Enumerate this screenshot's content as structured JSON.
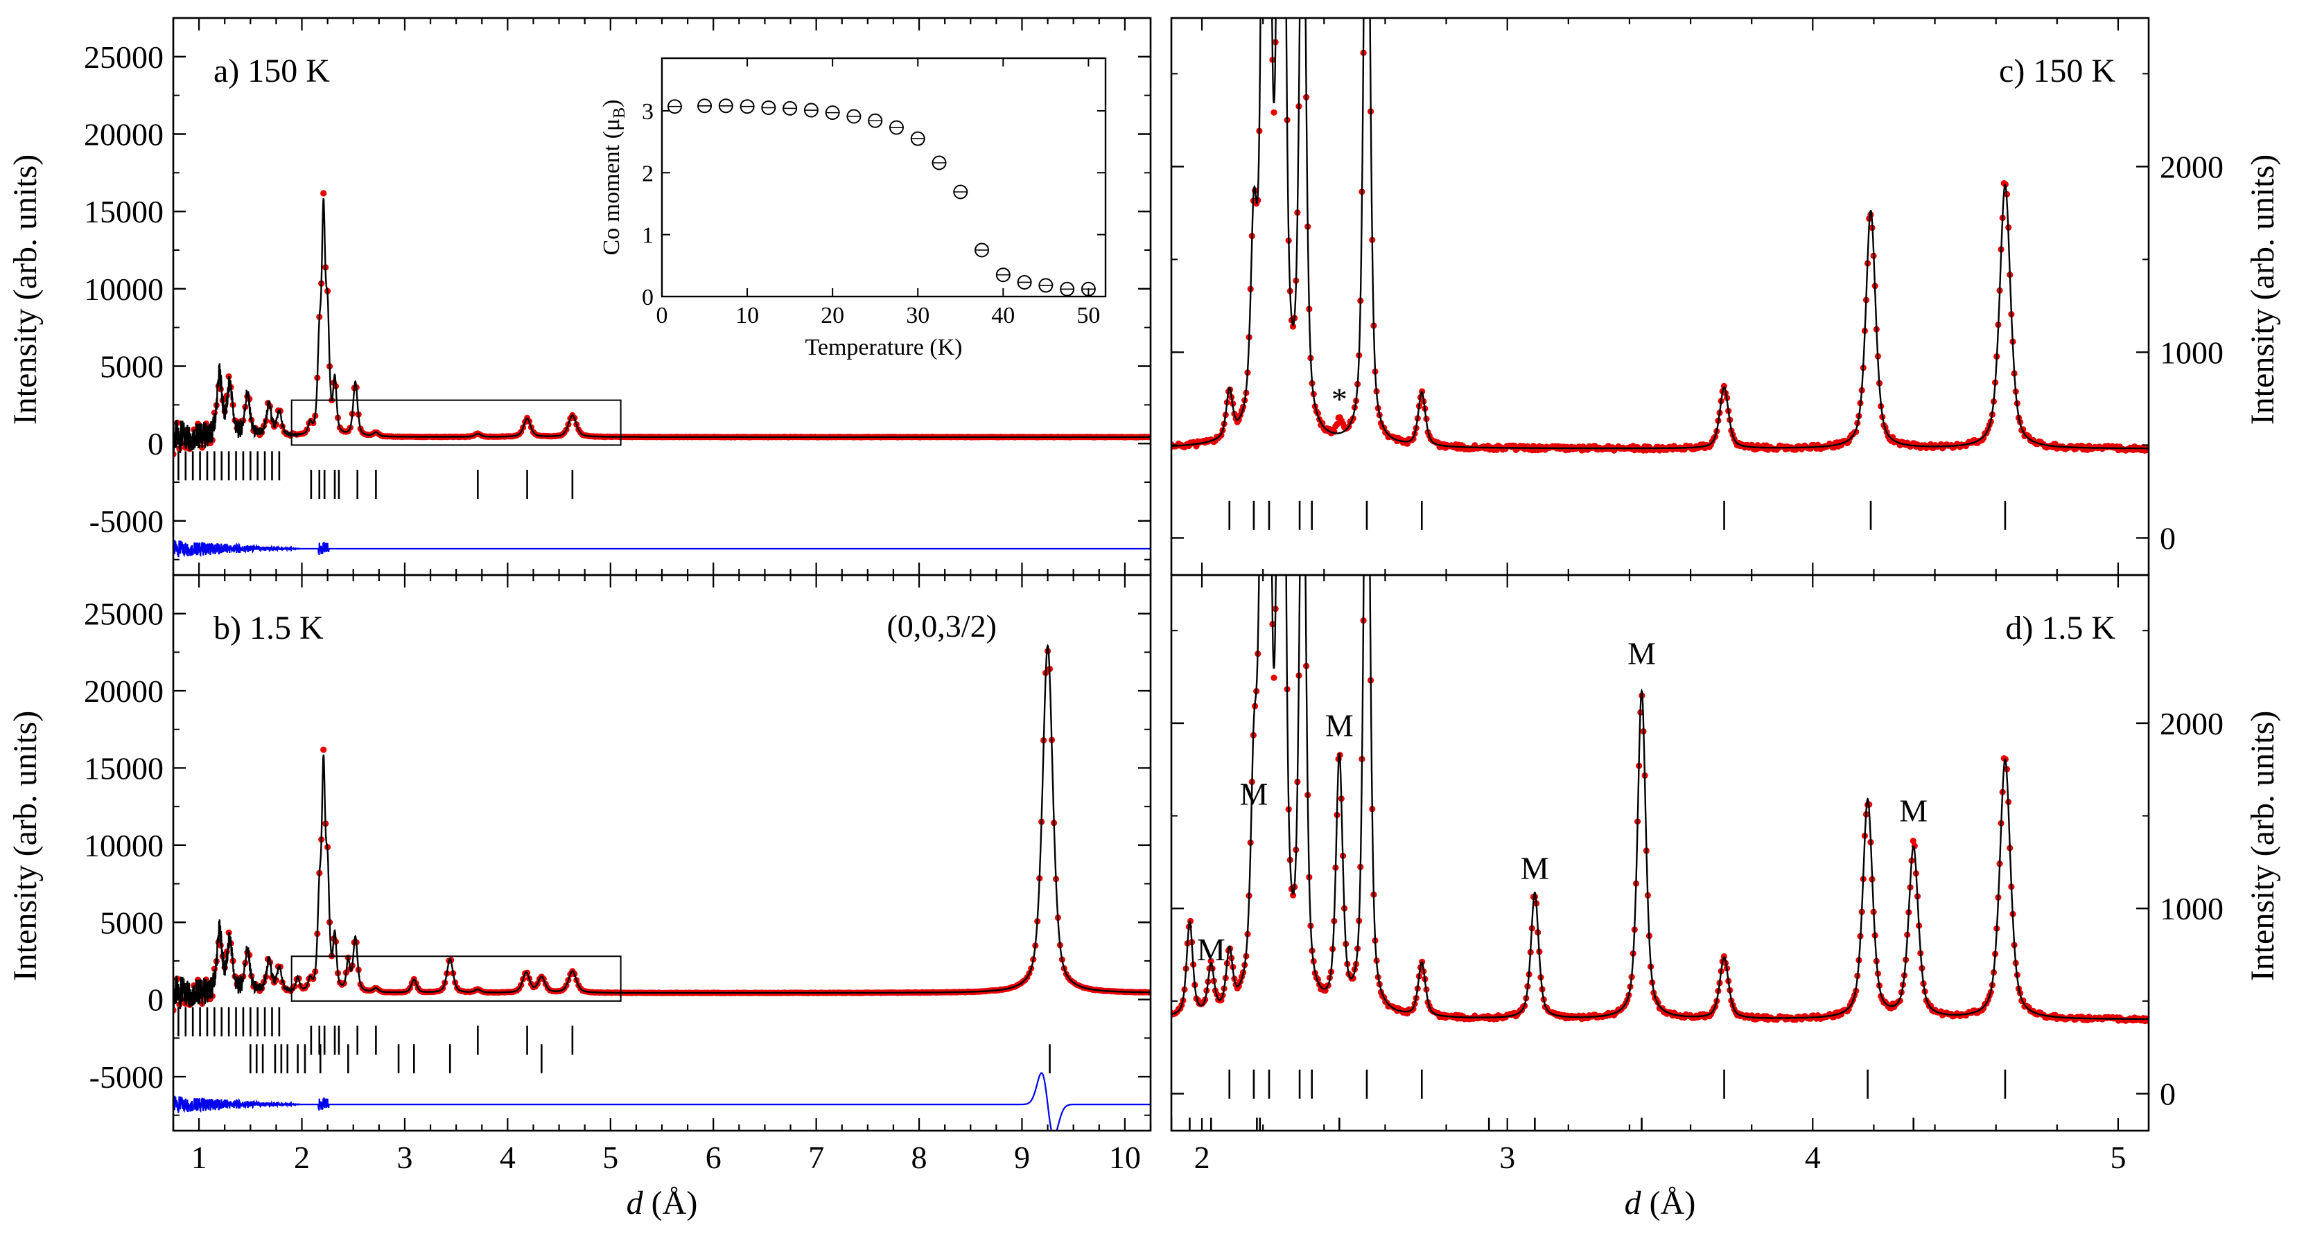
{
  "chart_data": [
    {
      "id": "a",
      "type": "scatter",
      "panel_label": "a) 150 K",
      "xlabel_italic": "d",
      "xlabel_unit": " (Å)",
      "ylabel": "Intensity (arb. units)",
      "xlim": [
        0.75,
        10.25
      ],
      "ylim": [
        -8500,
        27500
      ],
      "yticks": [
        "-5000",
        "0",
        "5000",
        "10000",
        "15000",
        "20000",
        "25000"
      ],
      "xticks": [],
      "peaks": [
        [
          1.2,
          3900,
          0.03
        ],
        [
          1.3,
          3300,
          0.03
        ],
        [
          1.47,
          2700,
          0.03
        ],
        [
          1.68,
          2000,
          0.03
        ],
        [
          1.78,
          1500,
          0.03
        ],
        [
          2.08,
          700,
          0.02
        ],
        [
          2.17,
          5500,
          0.02
        ],
        [
          2.21,
          13600,
          0.02
        ],
        [
          2.25,
          7000,
          0.02
        ],
        [
          2.32,
          3400,
          0.02
        ],
        [
          2.52,
          3500,
          0.025
        ],
        [
          2.72,
          250,
          0.03
        ],
        [
          3.71,
          200,
          0.035
        ],
        [
          4.19,
          1200,
          0.04
        ],
        [
          4.63,
          1400,
          0.045
        ]
      ],
      "background": 420,
      "bragg_ticks": [
        [
          0.8,
          1.85,
          0.07
        ],
        [
          2.09,
          2.17,
          2.22,
          2.32,
          2.36,
          2.54,
          2.72,
          3.71,
          4.19,
          4.63
        ]
      ],
      "difference_offset": -6800,
      "zoom_box": {
        "x": [
          1.9,
          5.1
        ],
        "y": [
          -100,
          2800
        ]
      },
      "series": [
        {
          "name": "observed",
          "color": "#e60000"
        },
        {
          "name": "calculated",
          "color": "#000000"
        },
        {
          "name": "difference",
          "color": "#0000ee"
        }
      ],
      "inset": {
        "xlabel": "Temperature (K)",
        "ylabel_main": "Co moment (μ",
        "ylabel_sub": "B",
        "ylabel_end": ")",
        "xlim": [
          0,
          52
        ],
        "ylim": [
          0,
          3.85
        ],
        "xticks": [
          "0",
          "10",
          "20",
          "30",
          "40",
          "50"
        ],
        "yticks": [
          "0",
          "1",
          "2",
          "3"
        ],
        "x": [
          1.5,
          5,
          7.5,
          10,
          12.5,
          15,
          17.5,
          20,
          22.5,
          25,
          27.5,
          30,
          32.5,
          35,
          37.5,
          40,
          42.5,
          45,
          47.5,
          50
        ],
        "y": [
          3.07,
          3.08,
          3.08,
          3.07,
          3.05,
          3.04,
          3.01,
          2.97,
          2.91,
          2.84,
          2.73,
          2.55,
          2.16,
          1.69,
          0.75,
          0.35,
          0.23,
          0.18,
          0.12,
          0.12
        ]
      }
    },
    {
      "id": "b",
      "type": "scatter",
      "panel_label": "b) 1.5 K",
      "xlabel_italic": "d",
      "xlabel_unit": " (Å)",
      "ylabel": "Intensity (arb. units)",
      "xlim": [
        0.75,
        10.25
      ],
      "ylim": [
        -8500,
        27500
      ],
      "yticks": [
        "-5000",
        "0",
        "5000",
        "10000",
        "15000",
        "20000",
        "25000"
      ],
      "xticks": [
        "1",
        "2",
        "3",
        "4",
        "5",
        "6",
        "7",
        "8",
        "9",
        "10"
      ],
      "peaks": [
        [
          1.2,
          3900,
          0.03
        ],
        [
          1.3,
          3300,
          0.03
        ],
        [
          1.47,
          2700,
          0.03
        ],
        [
          1.68,
          2000,
          0.03
        ],
        [
          1.78,
          1500,
          0.03
        ],
        [
          1.96,
          900,
          0.02
        ],
        [
          2.08,
          700,
          0.02
        ],
        [
          2.17,
          5500,
          0.02
        ],
        [
          2.21,
          13600,
          0.02
        ],
        [
          2.25,
          7000,
          0.02
        ],
        [
          2.32,
          3400,
          0.02
        ],
        [
          2.45,
          1900,
          0.02
        ],
        [
          2.52,
          3500,
          0.025
        ],
        [
          2.72,
          250,
          0.03
        ],
        [
          3.09,
          850,
          0.03
        ],
        [
          3.44,
          2200,
          0.035
        ],
        [
          3.71,
          200,
          0.035
        ],
        [
          4.18,
          1300,
          0.04
        ],
        [
          4.33,
          1000,
          0.04
        ],
        [
          4.63,
          1400,
          0.045
        ],
        [
          9.25,
          22500,
          0.06
        ]
      ],
      "background": 420,
      "bragg_ticks": [
        [
          0.8,
          1.85,
          0.07
        ],
        [
          2.09,
          2.17,
          2.22,
          2.32,
          2.36,
          2.54,
          2.72,
          3.71,
          4.19,
          4.63
        ],
        [
          1.5,
          1.56,
          1.62,
          1.74,
          1.8,
          1.86,
          1.96,
          2.03,
          2.18,
          2.45,
          2.94,
          3.09,
          3.44,
          4.33,
          9.27
        ]
      ],
      "difference_offset": -6800,
      "zoom_box": {
        "x": [
          1.9,
          5.1
        ],
        "y": [
          -100,
          2800
        ]
      },
      "annotation": "(0,0,3/2)",
      "series": [
        {
          "name": "observed",
          "color": "#e60000"
        },
        {
          "name": "calculated",
          "color": "#000000"
        },
        {
          "name": "difference",
          "color": "#0000ee"
        }
      ]
    },
    {
      "id": "c",
      "type": "scatter",
      "panel_label": "c) 150 K",
      "ylabel": "Intensity (arb. units)",
      "xlim": [
        1.9,
        5.1
      ],
      "ylim": [
        -200,
        2800
      ],
      "yticks": [
        "0",
        "1000",
        "2000"
      ],
      "xticks": [],
      "peaks": [
        [
          2.09,
          250,
          0.012
        ],
        [
          2.17,
          950,
          0.012
        ],
        [
          2.21,
          8000,
          0.012
        ],
        [
          2.26,
          6500,
          0.012
        ],
        [
          2.33,
          3500,
          0.012
        ],
        [
          2.54,
          4000,
          0.012
        ],
        [
          2.72,
          290,
          0.014
        ],
        [
          3.71,
          330,
          0.017
        ],
        [
          4.19,
          1280,
          0.019
        ],
        [
          4.63,
          1420,
          0.021
        ]
      ],
      "background": 480,
      "impurity": {
        "label": "*",
        "x": 2.45
      },
      "bragg_ticks": [
        [
          2.09,
          2.17,
          2.22,
          2.32,
          2.36,
          2.54,
          2.72,
          3.71,
          4.19,
          4.63
        ]
      ],
      "series": [
        {
          "name": "observed",
          "color": "#e60000"
        },
        {
          "name": "calculated",
          "color": "#000000"
        }
      ]
    },
    {
      "id": "d",
      "type": "scatter",
      "panel_label": "d) 1.5 K",
      "xlabel_italic": "d",
      "xlabel_unit": " (Å)",
      "ylabel": "Intensity (arb. units)",
      "xlim": [
        1.9,
        5.1
      ],
      "ylim": [
        -200,
        2800
      ],
      "yticks": [
        "0",
        "1000",
        "2000"
      ],
      "xticks": [
        "2",
        "3",
        "4",
        "5"
      ],
      "peaks": [
        [
          1.96,
          500,
          0.012
        ],
        [
          2.03,
          250,
          0.012
        ],
        [
          2.09,
          300,
          0.012
        ],
        [
          2.17,
          1000,
          0.012
        ],
        [
          2.19,
          800,
          0.012
        ],
        [
          2.21,
          8000,
          0.012
        ],
        [
          2.26,
          6500,
          0.012
        ],
        [
          2.33,
          3500,
          0.012
        ],
        [
          2.45,
          1350,
          0.013
        ],
        [
          2.54,
          4000,
          0.012
        ],
        [
          2.72,
          290,
          0.014
        ],
        [
          3.09,
          680,
          0.015
        ],
        [
          3.44,
          1770,
          0.016
        ],
        [
          3.71,
          330,
          0.017
        ],
        [
          4.18,
          1180,
          0.019
        ],
        [
          4.33,
          920,
          0.019
        ],
        [
          4.63,
          1400,
          0.021
        ]
      ],
      "background": 400,
      "annotations": [
        {
          "label": "M",
          "x": 2.03,
          "y": 720
        },
        {
          "label": "M",
          "x": 2.17,
          "y": 1560
        },
        {
          "label": "M",
          "x": 2.45,
          "y": 1930
        },
        {
          "label": "M",
          "x": 3.09,
          "y": 1160
        },
        {
          "label": "M",
          "x": 3.44,
          "y": 2320
        },
        {
          "label": "M",
          "x": 4.33,
          "y": 1470
        }
      ],
      "bragg_ticks": [
        [
          2.09,
          2.17,
          2.22,
          2.32,
          2.36,
          2.54,
          2.72,
          3.71,
          4.18,
          4.63
        ],
        [
          1.9,
          1.96,
          2.03,
          2.18,
          2.19,
          2.45,
          2.94,
          3.09,
          3.44,
          4.33
        ]
      ],
      "series": [
        {
          "name": "observed",
          "color": "#e60000"
        },
        {
          "name": "calculated",
          "color": "#000000"
        }
      ]
    }
  ]
}
